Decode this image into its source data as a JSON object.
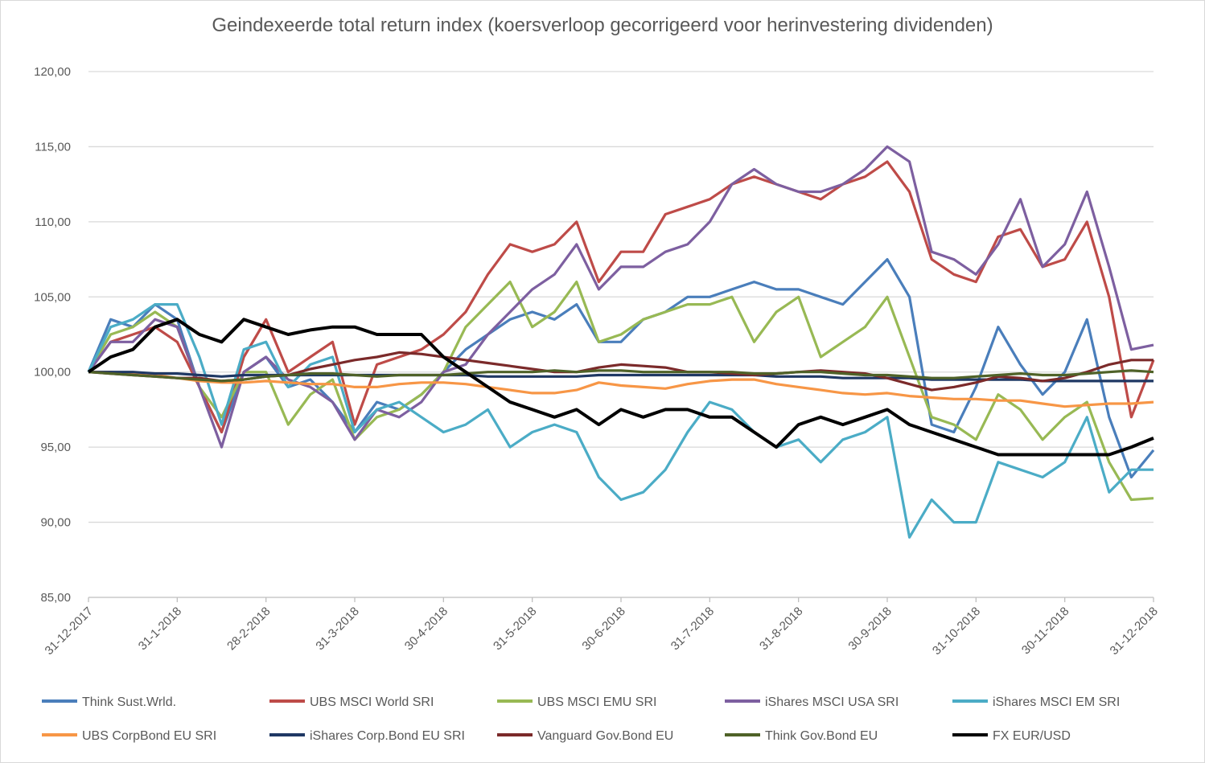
{
  "chart_data": {
    "type": "line",
    "title": "Geindexeerde total return index (koersverloop gecorrigeerd voor herinvestering dividenden)",
    "xlabel": "",
    "ylabel": "",
    "ylim": [
      85,
      120
    ],
    "yticks": [
      "85,00",
      "90,00",
      "95,00",
      "100,00",
      "105,00",
      "110,00",
      "115,00",
      "120,00"
    ],
    "xticks": [
      "31-12-2017",
      "31-1-2018",
      "28-2-2018",
      "31-3-2018",
      "30-4-2018",
      "31-5-2018",
      "30-6-2018",
      "31-7-2018",
      "31-8-2018",
      "30-9-2018",
      "31-10-2018",
      "30-11-2018",
      "31-12-2018"
    ],
    "grid": "horizontal",
    "legend": "bottom",
    "x": [
      0,
      0.25,
      0.5,
      0.75,
      1,
      1.25,
      1.5,
      1.75,
      2,
      2.25,
      2.5,
      2.75,
      3,
      3.25,
      3.5,
      3.75,
      4,
      4.25,
      4.5,
      4.75,
      5,
      5.25,
      5.5,
      5.75,
      6,
      6.25,
      6.5,
      6.75,
      7,
      7.25,
      7.5,
      7.75,
      8,
      8.25,
      8.5,
      8.75,
      9,
      9.25,
      9.5,
      9.75,
      10,
      10.25,
      10.5,
      10.75,
      11,
      11.25,
      11.5,
      11.75,
      12
    ],
    "series": [
      {
        "name": "Think Sust.Wrld.",
        "color": "#4a7ebb",
        "values": [
          100,
          103.5,
          103,
          104.5,
          103.5,
          99,
          96,
          100,
          101,
          99,
          99.5,
          98,
          96,
          98,
          97.5,
          98.5,
          100,
          101.5,
          102.5,
          103.5,
          104,
          103.5,
          104.5,
          102,
          102,
          103.5,
          104,
          105,
          105,
          105.5,
          106,
          105.5,
          105.5,
          105,
          104.5,
          106,
          107.5,
          105,
          96.5,
          96,
          99,
          103,
          100.5,
          98.5,
          100,
          103.5,
          97,
          93,
          94.8
        ]
      },
      {
        "name": "UBS MSCI World SRI",
        "color": "#be4b48",
        "values": [
          100,
          102,
          102.5,
          103,
          102,
          99,
          96,
          101,
          103.5,
          100,
          101,
          102,
          96.5,
          100.5,
          101,
          101.5,
          102.5,
          104,
          106.5,
          108.5,
          108,
          108.5,
          110,
          106,
          108,
          108,
          110.5,
          111,
          111.5,
          112.5,
          113,
          112.5,
          112,
          111.5,
          112.5,
          113,
          114,
          112,
          107.5,
          106.5,
          106,
          109,
          109.5,
          107,
          107.5,
          110,
          105,
          97,
          100.8
        ]
      },
      {
        "name": "UBS MSCI EMU SRI",
        "color": "#98b954",
        "values": [
          100,
          102.5,
          103,
          104,
          103,
          99,
          97,
          100,
          100,
          96.5,
          98.5,
          99.5,
          95.5,
          97,
          97.5,
          98.5,
          100,
          103,
          104.5,
          106,
          103,
          104,
          106,
          102,
          102.5,
          103.5,
          104,
          104.5,
          104.5,
          105,
          102,
          104,
          105,
          101,
          102,
          103,
          105,
          101,
          97,
          96.5,
          95.5,
          98.5,
          97.5,
          95.5,
          97,
          98,
          94,
          91.5,
          91.6
        ]
      },
      {
        "name": "iShares MSCI USA SRI",
        "color": "#7d5fa0",
        "values": [
          100,
          102,
          102,
          103.5,
          103,
          99,
          95,
          100,
          101,
          99.5,
          99,
          98,
          95.5,
          97.5,
          97,
          98,
          100,
          100.5,
          102.5,
          104,
          105.5,
          106.5,
          108.5,
          105.5,
          107,
          107,
          108,
          108.5,
          110,
          112.5,
          113.5,
          112.5,
          112,
          112,
          112.5,
          113.5,
          115,
          114,
          108,
          107.5,
          106.5,
          108.5,
          111.5,
          107,
          108.5,
          112,
          107,
          101.5,
          101.8
        ]
      },
      {
        "name": "iShares MSCI EM SRI",
        "color": "#4bacc6",
        "values": [
          100,
          103,
          103.5,
          104.5,
          104.5,
          101,
          96.5,
          101.5,
          102,
          99,
          100.5,
          101,
          96,
          97.5,
          98,
          97,
          96,
          96.5,
          97.5,
          95,
          96,
          96.5,
          96,
          93,
          91.5,
          92,
          93.5,
          96,
          98,
          97.5,
          96,
          95,
          95.5,
          94,
          95.5,
          96,
          97,
          89,
          91.5,
          90,
          90,
          94,
          93.5,
          93,
          94,
          97,
          92,
          93.5,
          93.5
        ]
      },
      {
        "name": "UBS CorpBond EU SRI",
        "color": "#f79646",
        "values": [
          100,
          100,
          99.9,
          99.8,
          99.6,
          99.4,
          99.3,
          99.3,
          99.4,
          99.3,
          99.2,
          99.2,
          99,
          99,
          99.2,
          99.3,
          99.3,
          99.2,
          99,
          98.8,
          98.6,
          98.6,
          98.8,
          99.3,
          99.1,
          99,
          98.9,
          99.2,
          99.4,
          99.5,
          99.5,
          99.2,
          99,
          98.8,
          98.6,
          98.5,
          98.6,
          98.4,
          98.3,
          98.2,
          98.2,
          98.1,
          98.1,
          97.9,
          97.7,
          97.8,
          97.9,
          97.9,
          98
        ]
      },
      {
        "name": "iShares Corp.Bond EU SRI",
        "color": "#1f3864",
        "values": [
          100,
          100,
          100,
          99.9,
          99.9,
          99.8,
          99.7,
          99.8,
          99.8,
          99.8,
          99.8,
          99.8,
          99.8,
          99.8,
          99.8,
          99.8,
          99.8,
          99.8,
          99.7,
          99.7,
          99.7,
          99.7,
          99.7,
          99.8,
          99.8,
          99.8,
          99.8,
          99.8,
          99.8,
          99.8,
          99.8,
          99.7,
          99.7,
          99.7,
          99.6,
          99.6,
          99.6,
          99.6,
          99.5,
          99.5,
          99.5,
          99.5,
          99.5,
          99.4,
          99.4,
          99.4,
          99.4,
          99.4,
          99.4
        ]
      },
      {
        "name": "Vanguard Gov.Bond EU",
        "color": "#7b2a2a",
        "values": [
          100,
          99.9,
          99.8,
          99.7,
          99.6,
          99.6,
          99.4,
          99.5,
          99.7,
          99.8,
          100.2,
          100.5,
          100.8,
          101,
          101.3,
          101.2,
          101,
          100.8,
          100.6,
          100.4,
          100.2,
          100,
          100,
          100.3,
          100.5,
          100.4,
          100.3,
          100,
          100,
          99.9,
          99.8,
          99.9,
          100,
          100.1,
          100,
          99.9,
          99.6,
          99.2,
          98.8,
          99,
          99.3,
          99.7,
          99.6,
          99.4,
          99.6,
          100,
          100.5,
          100.8,
          100.8
        ]
      },
      {
        "name": "Think Gov.Bond EU",
        "color": "#4f6228",
        "values": [
          100,
          99.9,
          99.8,
          99.7,
          99.6,
          99.5,
          99.4,
          99.5,
          99.7,
          99.8,
          99.9,
          99.9,
          99.8,
          99.7,
          99.8,
          99.8,
          99.8,
          99.9,
          100,
          100,
          100,
          100.1,
          100,
          100.1,
          100.1,
          100,
          100,
          100,
          100,
          100,
          99.9,
          99.9,
          100,
          100,
          99.9,
          99.8,
          99.8,
          99.7,
          99.6,
          99.6,
          99.7,
          99.8,
          99.9,
          99.8,
          99.8,
          99.9,
          100,
          100.1,
          100
        ]
      },
      {
        "name": "FX EUR/USD",
        "color": "#000000",
        "values": [
          100,
          101,
          101.5,
          103,
          103.5,
          102.5,
          102,
          103.5,
          103,
          102.5,
          102.8,
          103,
          103,
          102.5,
          102.5,
          102.5,
          101,
          100,
          99,
          98,
          97.5,
          97,
          97.5,
          96.5,
          97.5,
          97,
          97.5,
          97.5,
          97,
          97,
          96,
          95,
          96.5,
          97,
          96.5,
          97,
          97.5,
          96.5,
          96,
          95.5,
          95,
          94.5,
          94.5,
          94.5,
          94.5,
          94.5,
          94.5,
          95,
          95.6
        ]
      }
    ]
  }
}
